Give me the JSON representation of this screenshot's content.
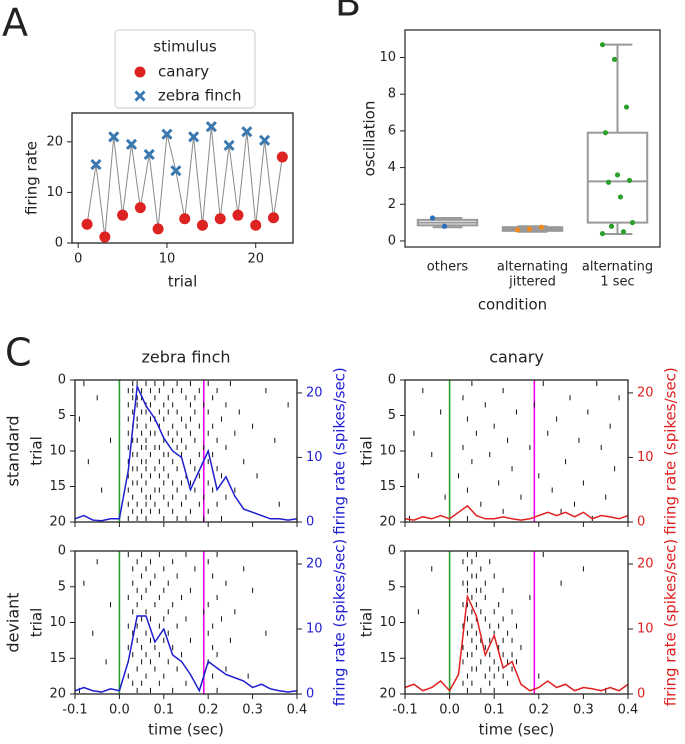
{
  "chart_data": [
    {
      "type": "line",
      "panel": "A",
      "xlabel": "trial",
      "ylabel": "firing rate",
      "legend_title": "stimulus",
      "xlim": [
        -0.7,
        24.2
      ],
      "xticks": [
        0,
        10,
        20
      ],
      "ylim": [
        0,
        25.7
      ],
      "yticks": [
        0,
        10,
        20
      ],
      "series": [
        {
          "name": "canary",
          "color": "#dd2222",
          "marker": "o",
          "x": [
            1,
            3,
            5,
            7,
            9,
            12,
            14,
            16,
            18,
            20,
            22,
            23
          ],
          "values": [
            3.7,
            1.2,
            5.5,
            7,
            2.8,
            4.8,
            3.5,
            4.8,
            5.5,
            3.5,
            5,
            17
          ]
        },
        {
          "name": "zebra finch",
          "color": "#3a78b0",
          "marker": "x",
          "x": [
            2,
            4,
            6,
            8,
            10,
            11,
            13,
            15,
            17,
            19,
            21
          ],
          "values": [
            15.5,
            21,
            19.5,
            17.5,
            21.5,
            14.3,
            21,
            23,
            19.3,
            22,
            20.3
          ]
        }
      ]
    },
    {
      "type": "box",
      "panel": "B",
      "xlabel": "condition",
      "ylabel": "oscillation",
      "categories": [
        [
          "others"
        ],
        [
          "alternating",
          "jittered"
        ],
        [
          "alternating",
          "1 sec"
        ]
      ],
      "colors": [
        "#2a6fbd",
        "#f08a1c",
        "#2ca02c"
      ],
      "ylim": [
        -0.33,
        11.5
      ],
      "yticks": [
        0,
        2,
        4,
        6,
        8,
        10
      ],
      "boxes": [
        {
          "whislo": 0.75,
          "q1": 0.85,
          "med": 1.0,
          "q3": 1.15,
          "whishi": 1.25
        },
        {
          "whislo": 0.5,
          "q1": 0.55,
          "med": 0.65,
          "q3": 0.75,
          "whishi": 0.8
        },
        {
          "whislo": 0.38,
          "q1": 1.0,
          "med": 3.25,
          "q3": 5.9,
          "whishi": 10.7
        }
      ],
      "points": [
        [
          1.25,
          0.8
        ],
        [
          0.6,
          0.65,
          0.75
        ],
        [
          10.7,
          9.9,
          7.3,
          5.9,
          3.6,
          3.3,
          3.2,
          2.4,
          1.0,
          0.8,
          0.5,
          0.4
        ]
      ]
    },
    {
      "type": "raster",
      "panel": "C",
      "title": "zebra finch",
      "row_label": "standard",
      "ylabel": "trial",
      "y2label": "firing rate (spikes/sec)",
      "color": "#1f1fd0",
      "xlim": [
        -0.1,
        0.4
      ],
      "xticks": [
        -0.1,
        0,
        0.1,
        0.2,
        0.3,
        0.4
      ],
      "ylim": [
        20,
        0
      ],
      "yticks": [
        0,
        5,
        10,
        15,
        20
      ],
      "y2lim": [
        0,
        22
      ],
      "y2ticks": [
        0,
        10,
        20
      ],
      "stimulus_lines": [
        {
          "value": 0,
          "color": "#2ca02c"
        },
        {
          "value": 0.19,
          "color": "#ee00ee"
        }
      ],
      "spikes": [
        [
          -0.08,
          0.03,
          0.04,
          0.06,
          0.08,
          0.1,
          0.13,
          0.16,
          0.2,
          0.25
        ],
        [
          0.02,
          0.03,
          0.05,
          0.07,
          0.09,
          0.12,
          0.14,
          0.18,
          0.22,
          0.33
        ],
        [
          -0.05,
          0.03,
          0.04,
          0.05,
          0.08,
          0.11,
          0.15,
          0.17,
          0.21
        ],
        [
          0.02,
          0.04,
          0.06,
          0.07,
          0.1,
          0.12,
          0.16,
          0.19,
          0.24,
          0.38
        ],
        [
          0.03,
          0.05,
          0.06,
          0.09,
          0.11,
          0.13,
          0.17,
          0.2,
          0.27
        ],
        [
          -0.09,
          0.02,
          0.04,
          0.07,
          0.08,
          0.1,
          0.14,
          0.16,
          0.23
        ],
        [
          0.03,
          0.04,
          0.06,
          0.09,
          0.12,
          0.15,
          0.18,
          0.21,
          0.3
        ],
        [
          0.02,
          0.05,
          0.07,
          0.08,
          0.11,
          0.13,
          0.16,
          0.2,
          0.26
        ],
        [
          -0.02,
          0.03,
          0.04,
          0.06,
          0.1,
          0.12,
          0.14,
          0.17,
          0.22,
          0.35
        ],
        [
          0.02,
          0.05,
          0.06,
          0.08,
          0.09,
          0.13,
          0.15,
          0.19,
          0.24
        ],
        [
          0.03,
          0.04,
          0.07,
          0.1,
          0.11,
          0.14,
          0.18,
          0.21
        ],
        [
          -0.07,
          0.02,
          0.05,
          0.06,
          0.09,
          0.12,
          0.16,
          0.2,
          0.28
        ],
        [
          0.03,
          0.04,
          0.06,
          0.08,
          0.1,
          0.13,
          0.17,
          0.22
        ],
        [
          0.02,
          0.05,
          0.07,
          0.09,
          0.11,
          0.15,
          0.18,
          0.23,
          0.31
        ],
        [
          0.03,
          0.04,
          0.06,
          0.1,
          0.12,
          0.14,
          0.16,
          0.2
        ],
        [
          -0.04,
          0.02,
          0.05,
          0.08,
          0.09,
          0.13,
          0.17,
          0.21,
          0.26
        ],
        [
          0.03,
          0.06,
          0.07,
          0.1,
          0.12,
          0.15,
          0.19,
          0.24
        ],
        [
          0.02,
          0.04,
          0.06,
          0.08,
          0.11,
          0.14,
          0.18,
          0.22,
          0.36
        ],
        [
          0.03,
          0.05,
          0.07,
          0.09,
          0.12,
          0.16,
          0.2
        ],
        [
          0.02,
          0.04,
          0.06,
          0.1,
          0.13,
          0.15,
          0.19,
          0.23
        ]
      ],
      "psth": {
        "x": [
          -0.1,
          -0.08,
          -0.06,
          -0.04,
          -0.02,
          0,
          0.02,
          0.04,
          0.06,
          0.08,
          0.1,
          0.12,
          0.14,
          0.16,
          0.18,
          0.2,
          0.22,
          0.24,
          0.26,
          0.28,
          0.3,
          0.32,
          0.34,
          0.36,
          0.38,
          0.4
        ],
        "values": [
          0.5,
          1,
          0.3,
          0.2,
          0.5,
          0.5,
          8,
          21,
          18,
          16,
          13,
          11,
          10,
          5,
          8,
          11,
          5,
          7,
          4,
          2,
          1.5,
          1,
          0.5,
          0.5,
          0.3,
          0.5
        ]
      }
    },
    {
      "type": "raster",
      "title": "canary",
      "ylabel": "trial",
      "y2label": "firing rate (spikes/sec)",
      "color": "#e02020",
      "xlim": [
        -0.1,
        0.4
      ],
      "xticks": [
        -0.1,
        0,
        0.1,
        0.2,
        0.3,
        0.4
      ],
      "ylim": [
        20,
        0
      ],
      "yticks": [
        0,
        5,
        10,
        15,
        20
      ],
      "y2lim": [
        0,
        22
      ],
      "y2ticks": [
        0,
        10,
        20
      ],
      "stimulus_lines": [
        {
          "value": 0,
          "color": "#2ca02c"
        },
        {
          "value": 0.19,
          "color": "#ee00ee"
        }
      ],
      "spikes": [
        [
          0.05,
          0.21,
          0.33
        ],
        [
          -0.06,
          0.12
        ],
        [
          0.03,
          0.27,
          0.38
        ],
        [
          0.08,
          0.19
        ],
        [
          -0.02,
          0.15,
          0.31
        ],
        [
          0.04,
          0.24
        ],
        [
          0.1,
          0.36
        ],
        [
          -0.08,
          0.06,
          0.22
        ],
        [
          0.13,
          0.29
        ],
        [
          0.03,
          0.18,
          0.34
        ],
        [
          -0.04,
          0.09
        ],
        [
          0.05,
          0.26
        ],
        [
          0.14,
          0.37
        ],
        [
          -0.07,
          0.02,
          0.2
        ],
        [
          0.11,
          0.3
        ],
        [
          0.04,
          0.23
        ],
        [
          -0.01,
          0.16,
          0.35
        ],
        [
          0.07,
          0.28
        ],
        [
          0.12,
          0.25
        ],
        [
          -0.09,
          0.04,
          0.32
        ]
      ],
      "psth": {
        "x": [
          -0.1,
          -0.08,
          -0.06,
          -0.04,
          -0.02,
          0,
          0.02,
          0.04,
          0.06,
          0.08,
          0.1,
          0.12,
          0.14,
          0.16,
          0.18,
          0.2,
          0.22,
          0.24,
          0.26,
          0.28,
          0.3,
          0.32,
          0.34,
          0.36,
          0.38,
          0.4
        ],
        "values": [
          0.5,
          0.3,
          0.8,
          0.5,
          1,
          0.5,
          1.5,
          2.5,
          1,
          0.5,
          0.5,
          0.8,
          0.5,
          0.3,
          0.5,
          1,
          1.5,
          1,
          1.5,
          0.8,
          1.5,
          0.5,
          1,
          0.8,
          0.5,
          1
        ]
      }
    },
    {
      "type": "raster",
      "row_label": "deviant",
      "ylabel": "trial",
      "y2label": "firing rate (spikes/sec)",
      "xlabel": "time (sec)",
      "color": "#1f1fd0",
      "xlim": [
        -0.1,
        0.4
      ],
      "xticks": [
        -0.1,
        {
          "value": 0,
          "label": "0.0"
        },
        0.1,
        0.2,
        0.3,
        0.4
      ],
      "ylim": [
        20,
        0
      ],
      "yticks": [
        0,
        5,
        10,
        15,
        20
      ],
      "y2lim": [
        0,
        22
      ],
      "y2ticks": [
        0,
        10,
        20
      ],
      "stimulus_lines": [
        {
          "value": 0,
          "color": "#2ca02c"
        },
        {
          "value": 0.19,
          "color": "#ee00ee"
        }
      ],
      "spikes": [
        [
          0.02,
          0.05,
          0.09,
          0.15,
          0.22
        ],
        [
          -0.05,
          0.04,
          0.07,
          0.12,
          0.2
        ],
        [
          0.03,
          0.06,
          0.1,
          0.17,
          0.28
        ],
        [
          0.05,
          0.08,
          0.13,
          0.21
        ],
        [
          -0.08,
          0.03,
          0.07,
          0.11,
          0.24
        ],
        [
          0.04,
          0.06,
          0.1,
          0.16,
          0.3
        ],
        [
          0.02,
          0.05,
          0.09,
          0.14,
          0.22
        ],
        [
          -0.02,
          0.04,
          0.08,
          0.12,
          0.2
        ],
        [
          0.03,
          0.06,
          0.11,
          0.19,
          0.26
        ],
        [
          0.05,
          0.07,
          0.1,
          0.15,
          0.23
        ],
        [
          0.02,
          0.04,
          0.09,
          0.13,
          0.21
        ],
        [
          -0.06,
          0.03,
          0.06,
          0.11,
          0.2,
          0.33
        ],
        [
          0.04,
          0.07,
          0.1,
          0.16,
          0.25
        ],
        [
          0.02,
          0.05,
          0.08,
          0.12,
          0.21
        ],
        [
          0.03,
          0.06,
          0.09,
          0.14,
          0.22
        ],
        [
          -0.03,
          0.05,
          0.07,
          0.11,
          0.2
        ],
        [
          0.04,
          0.08,
          0.13,
          0.24
        ],
        [
          0.02,
          0.06,
          0.1,
          0.21,
          0.29
        ],
        [
          0.03,
          0.05,
          0.09,
          0.15
        ],
        [
          -0.09,
          0.04,
          0.07,
          0.12,
          0.22
        ]
      ],
      "psth": {
        "x": [
          -0.1,
          -0.08,
          -0.06,
          -0.04,
          -0.02,
          0,
          0.02,
          0.04,
          0.06,
          0.08,
          0.1,
          0.12,
          0.14,
          0.16,
          0.18,
          0.2,
          0.22,
          0.24,
          0.26,
          0.28,
          0.3,
          0.32,
          0.34,
          0.36,
          0.38,
          0.4
        ],
        "values": [
          0.5,
          1,
          0.5,
          0.3,
          0.8,
          0.5,
          5,
          12,
          12,
          8,
          10,
          6,
          5,
          3,
          0.5,
          5,
          4,
          3,
          2.5,
          2,
          1,
          1.5,
          0.8,
          0.5,
          0.3,
          0.5
        ]
      }
    },
    {
      "type": "raster",
      "ylabel": "trial",
      "y2label": "firing rate (spikes/sec)",
      "xlabel": "time (sec)",
      "color": "#e02020",
      "xlim": [
        -0.1,
        0.4
      ],
      "xticks": [
        -0.1,
        {
          "value": 0,
          "label": "0.0"
        },
        0.1,
        0.2,
        0.3,
        0.4
      ],
      "ylim": [
        20,
        0
      ],
      "yticks": [
        0,
        5,
        10,
        15,
        20
      ],
      "y2lim": [
        0,
        22
      ],
      "y2ticks": [
        0,
        10,
        20
      ],
      "stimulus_lines": [
        {
          "value": 0,
          "color": "#2ca02c"
        },
        {
          "value": 0.19,
          "color": "#ee00ee"
        }
      ],
      "spikes": [
        [
          0.04,
          0.06,
          0.21
        ],
        [
          0.03,
          0.05,
          0.09
        ],
        [
          -0.04,
          0.04,
          0.07,
          0.3
        ],
        [
          0.05,
          0.06,
          0.1
        ],
        [
          0.03,
          0.04,
          0.08,
          0.25
        ],
        [
          0.04,
          0.06,
          0.07,
          0.12
        ],
        [
          0.05,
          0.08,
          0.18
        ],
        [
          0.03,
          0.04,
          0.06,
          0.11
        ],
        [
          -0.07,
          0.05,
          0.07,
          0.1,
          0.14
        ],
        [
          0.04,
          0.06,
          0.08,
          0.12
        ],
        [
          0.03,
          0.05,
          0.09,
          0.11,
          0.15
        ],
        [
          0.04,
          0.06,
          0.1,
          0.13
        ],
        [
          0.05,
          0.07,
          0.09,
          0.12,
          0.14
        ],
        [
          0.03,
          0.06,
          0.08,
          0.11,
          0.16
        ],
        [
          0.04,
          0.05,
          0.09,
          0.12,
          0.14
        ],
        [
          0.03,
          0.07,
          0.1,
          0.13,
          0.15
        ],
        [
          0.05,
          0.06,
          0.09,
          0.11,
          0.14
        ],
        [
          0.04,
          0.08,
          0.1,
          0.12,
          0.2
        ],
        [
          0.03,
          0.05,
          0.09,
          0.13
        ],
        [
          0.04,
          0.07,
          0.1,
          0.35
        ]
      ],
      "psth": {
        "x": [
          -0.1,
          -0.08,
          -0.06,
          -0.04,
          -0.02,
          0,
          0.02,
          0.04,
          0.06,
          0.08,
          0.1,
          0.12,
          0.14,
          0.16,
          0.18,
          0.2,
          0.22,
          0.24,
          0.26,
          0.28,
          0.3,
          0.32,
          0.34,
          0.36,
          0.38,
          0.4
        ],
        "values": [
          1,
          1.5,
          0.5,
          1,
          2,
          0.5,
          3,
          15,
          12,
          6,
          9,
          4,
          5,
          1.5,
          0.5,
          1,
          2,
          1,
          1.5,
          0.5,
          1,
          0.8,
          0.5,
          1,
          0.5,
          1.5
        ]
      }
    }
  ]
}
